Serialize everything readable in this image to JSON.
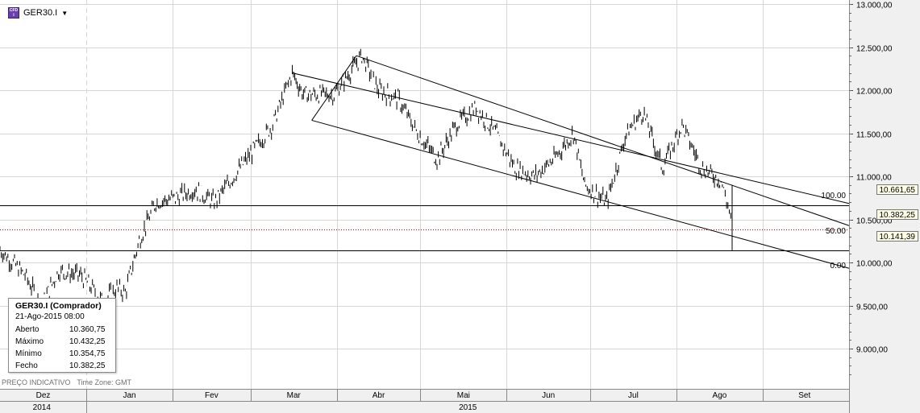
{
  "header": {
    "symbol": "GER30.I",
    "icon": "cfd-i-icon",
    "dropdown_icon": "caret-down-icon"
  },
  "ohlc_box": {
    "title": "GER30.I (Comprador)",
    "datetime": "21-Ago-2015 08:00",
    "rows": [
      {
        "label": "Aberto",
        "value": "10.360,75"
      },
      {
        "label": "Máximo",
        "value": "10.432,25"
      },
      {
        "label": "Mínimo",
        "value": "10.354,75"
      },
      {
        "label": "Fecho",
        "value": "10.382,25"
      }
    ]
  },
  "footer": {
    "note": "PREÇO INDICATIVO",
    "timezone": "Time Zone: GMT"
  },
  "price_tags": {
    "upper": "10.661,65",
    "current": "10.382,25",
    "lower": "10.141,39"
  },
  "fib_labels": {
    "l100": "100.00",
    "l50": "50.00",
    "l0": "0.00"
  },
  "colors": {
    "grid": "#d6d6d6",
    "axis_bg": "#f0f0f0",
    "price": "#000000",
    "current_line": "#c00000"
  },
  "chart_data": {
    "type": "line",
    "title": "GER30.I",
    "y_ticks": [
      "13.000,00",
      "12.500,00",
      "12.000,00",
      "11.500,00",
      "11.000,00",
      "10.500,00",
      "10.000,00",
      "9.500,00",
      "9.000,00"
    ],
    "x_months": [
      "Dez",
      "Jan",
      "Fev",
      "Mar",
      "Abr",
      "Mai",
      "Jun",
      "Jul",
      "Ago",
      "Set"
    ],
    "x_years": [
      "2014",
      "2015"
    ],
    "ylim": [
      8600,
      13000
    ],
    "grid": true,
    "series": [
      {
        "values_by_month": [
          {
            "x": "2014-12-01",
            "y": 10150
          },
          {
            "x": "2014-12-10",
            "y": 9850
          },
          {
            "x": "2014-12-16",
            "y": 9500
          },
          {
            "x": "2014-12-22",
            "y": 9900
          },
          {
            "x": "2014-12-30",
            "y": 9850
          },
          {
            "x": "2015-01-07",
            "y": 9550
          },
          {
            "x": "2015-01-12",
            "y": 9700
          },
          {
            "x": "2015-01-15",
            "y": 9650
          },
          {
            "x": "2015-01-20",
            "y": 10250
          },
          {
            "x": "2015-01-26",
            "y": 10700
          },
          {
            "x": "2015-02-02",
            "y": 10750
          },
          {
            "x": "2015-02-09",
            "y": 10850
          },
          {
            "x": "2015-02-16",
            "y": 10700
          },
          {
            "x": "2015-02-23",
            "y": 11000
          },
          {
            "x": "2015-03-02",
            "y": 11300
          },
          {
            "x": "2015-03-09",
            "y": 11600
          },
          {
            "x": "2015-03-16",
            "y": 12200
          },
          {
            "x": "2015-03-20",
            "y": 11950
          },
          {
            "x": "2015-03-31",
            "y": 11950
          },
          {
            "x": "2015-04-10",
            "y": 12400
          },
          {
            "x": "2015-04-16",
            "y": 12000
          },
          {
            "x": "2015-04-23",
            "y": 11900
          },
          {
            "x": "2015-04-30",
            "y": 11500
          },
          {
            "x": "2015-05-07",
            "y": 11200
          },
          {
            "x": "2015-05-14",
            "y": 11600
          },
          {
            "x": "2015-05-21",
            "y": 11800
          },
          {
            "x": "2015-05-28",
            "y": 11500
          },
          {
            "x": "2015-06-04",
            "y": 11100
          },
          {
            "x": "2015-06-11",
            "y": 11000
          },
          {
            "x": "2015-06-18",
            "y": 11200
          },
          {
            "x": "2015-06-25",
            "y": 11500
          },
          {
            "x": "2015-06-29",
            "y": 10900
          },
          {
            "x": "2015-07-07",
            "y": 10700
          },
          {
            "x": "2015-07-14",
            "y": 11500
          },
          {
            "x": "2015-07-20",
            "y": 11750
          },
          {
            "x": "2015-07-27",
            "y": 11100
          },
          {
            "x": "2015-08-03",
            "y": 11600
          },
          {
            "x": "2015-08-10",
            "y": 11100
          },
          {
            "x": "2015-08-17",
            "y": 10950
          },
          {
            "x": "2015-08-20",
            "y": 10600
          },
          {
            "x": "2015-08-21",
            "y": 10382
          }
        ]
      }
    ],
    "horizontal_levels": [
      10661.65,
      10382.25,
      10141.39
    ],
    "channel_lines": [
      {
        "from": {
          "x": "2015-03-16",
          "y": 12200
        },
        "to": {
          "x": "2015-09-30",
          "y": 10700
        }
      },
      {
        "from": {
          "x": "2015-04-08",
          "y": 12400
        },
        "to": {
          "x": "2015-09-30",
          "y": 10450
        }
      },
      {
        "from": {
          "x": "2015-03-23",
          "y": 11650
        },
        "to": {
          "x": "2015-09-30",
          "y": 9950
        }
      }
    ]
  }
}
